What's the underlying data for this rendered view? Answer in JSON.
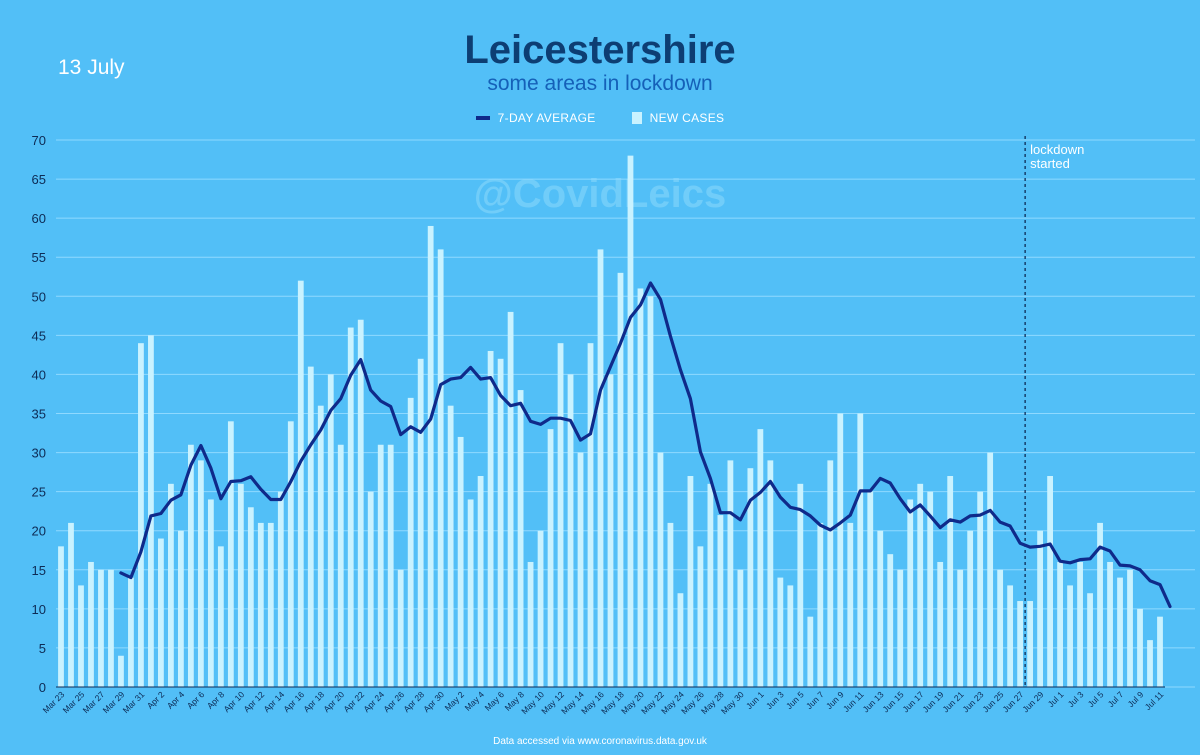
{
  "header": {
    "date": "13 July",
    "title": "Leicestershire",
    "subtitle": "some areas in lockdown",
    "watermark": "@CovidLeics",
    "footer": "Data accessed via www.coronavirus.data.gov.uk"
  },
  "legend": {
    "line_label": "7-DAY AVERAGE",
    "bar_label": "NEW CASES"
  },
  "colors": {
    "background": "#52bff7",
    "bars": "#c9f2ff",
    "line": "#0f2a8a",
    "grid": "#8fd9ff"
  },
  "chart_data": {
    "type": "bar",
    "title": "Leicestershire",
    "subtitle": "some areas in lockdown",
    "ylim": [
      0,
      70
    ],
    "yticks": [
      0,
      5,
      10,
      15,
      20,
      25,
      30,
      35,
      40,
      45,
      50,
      55,
      60,
      65,
      70
    ],
    "xlabel": "",
    "ylabel": "",
    "legend_position": "top-center",
    "grid": true,
    "x_tick_labels": [
      "Mar 23",
      "Mar 25",
      "Mar 27",
      "Mar 29",
      "Mar 31",
      "Apr 2",
      "Apr 4",
      "Apr 6",
      "Apr 8",
      "Apr 10",
      "Apr 12",
      "Apr 14",
      "Apr 16",
      "Apr 18",
      "Apr 20",
      "Apr 22",
      "Apr 24",
      "Apr 26",
      "Apr 28",
      "Apr 30",
      "May 2",
      "May 4",
      "May 6",
      "May 8",
      "May 10",
      "May 12",
      "May 14",
      "May 16",
      "May 18",
      "May 20",
      "May 22",
      "May 24",
      "May 26",
      "May 28",
      "May 30",
      "Jun 1",
      "Jun 3",
      "Jun 5",
      "Jun 7",
      "Jun 9",
      "Jun 11",
      "Jun 13",
      "Jun 15",
      "Jun 17",
      "Jun 19",
      "Jun 21",
      "Jun 23",
      "Jun 25",
      "Jun 27",
      "Jun 29",
      "Jul 1",
      "Jul 3",
      "Jul 5",
      "Jul 7",
      "Jul 9",
      "Jul 11"
    ],
    "series": [
      {
        "name": "NEW CASES",
        "values": [
          18,
          21,
          13,
          16,
          15,
          15,
          4,
          14,
          44,
          45,
          19,
          26,
          20,
          31,
          29,
          24,
          18,
          34,
          26,
          23,
          21,
          21,
          25,
          34,
          52,
          41,
          36,
          40,
          31,
          46,
          47,
          25,
          31,
          31,
          15,
          37,
          42,
          59,
          56,
          36,
          32,
          24,
          27,
          43,
          42,
          48,
          38,
          16,
          20,
          33,
          44,
          40,
          30,
          44,
          56,
          40,
          53,
          68,
          51,
          50,
          30,
          21,
          12,
          27,
          18,
          26,
          22,
          29,
          15,
          28,
          33,
          29,
          14,
          13,
          26,
          9,
          21,
          29,
          35,
          21,
          35,
          25,
          20,
          17,
          15,
          24,
          26,
          25,
          16,
          27,
          15,
          20,
          25,
          30,
          15,
          13,
          11,
          11,
          20,
          27,
          16,
          13,
          16,
          12,
          21,
          16,
          14,
          15,
          10,
          6,
          9
        ]
      },
      {
        "name": "7-DAY AVERAGE",
        "start_index": 6,
        "values": [
          14.6,
          14,
          17.3,
          21.9,
          22.2,
          23.9,
          24.6,
          28.4,
          30.9,
          28,
          24.1,
          26.3,
          26.4,
          26.9,
          25.3,
          24,
          24,
          26.3,
          28.9,
          31,
          32.9,
          35.4,
          36.9,
          39.9,
          41.9,
          38,
          36.6,
          35.9,
          32.3,
          33.3,
          32.6,
          34.3,
          38.7,
          39.4,
          39.6,
          40.9,
          39.4,
          39.6,
          37.3,
          36,
          36.3,
          34,
          33.6,
          34.4,
          34.4,
          34.1,
          31.6,
          32.4,
          38,
          41,
          44,
          47.3,
          48.9,
          51.7,
          49.6,
          44.9,
          40.6,
          36.9,
          30.1,
          26.7,
          22.3,
          22.3,
          21.4,
          23.9,
          24.9,
          26.3,
          24.3,
          23,
          22.7,
          21.9,
          20.7,
          20.1,
          21,
          22,
          25.1,
          25.1,
          26.7,
          26.1,
          24.1,
          22.4,
          23.3,
          21.9,
          20.4,
          21.4,
          21.1,
          21.9,
          22,
          22.6,
          21.1,
          20.6,
          18.4,
          17.9,
          18,
          18.3,
          16.1,
          15.9,
          16.3,
          16.4,
          17.9,
          17.4,
          15.6,
          15.5,
          15,
          13.6,
          13.1,
          10.3
        ]
      }
    ],
    "annotation": {
      "text_line1": "lockdown",
      "text_line2": "started",
      "at_index": 97
    }
  }
}
